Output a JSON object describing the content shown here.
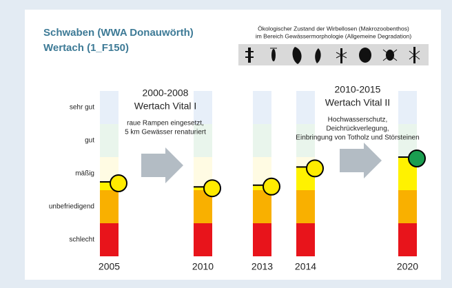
{
  "chart_data": {
    "type": "status-columns",
    "title_lines": [
      "Schwaben (WWA Donauwörth)",
      "Wertach (1_F150)"
    ],
    "subtitle_lines": [
      "Ökologischer Zustand der Wirbellosen (Makrozoobenthos)",
      "im Bereich Gewässermorphologie (Allgemeine Degradation)"
    ],
    "categories": [
      "2005",
      "2010",
      "2013",
      "2014",
      "2020"
    ],
    "values": [
      2.25,
      2.1,
      2.15,
      2.7,
      3.0
    ],
    "point_colors": [
      "#ffeb00",
      "#ffeb00",
      "#ffeb00",
      "#ffeb00",
      "#1a9e50"
    ],
    "ylim": [
      0,
      5
    ],
    "yticks": [
      {
        "value": 0.5,
        "label": "schlecht"
      },
      {
        "value": 1.5,
        "label": "unbefriedigend"
      },
      {
        "value": 2.5,
        "label": "mäßig"
      },
      {
        "value": 3.5,
        "label": "gut"
      },
      {
        "value": 4.5,
        "label": "sehr gut"
      }
    ],
    "band_colors": [
      "#e8141b",
      "#f9b000",
      "#fff200",
      "#2ca05a",
      "#5b8ed6"
    ],
    "band_pale_colors": [
      "#fde3e3",
      "#fdf0d6",
      "#fffbe3",
      "#e9f5ec",
      "#e7eff9"
    ],
    "annotations": [
      {
        "heading": [
          "2000-2008",
          "Wertach Vital I"
        ],
        "detail": [
          "raue Rampen eingesetzt,",
          "5 km Gewässer renaturiert"
        ]
      },
      {
        "heading": [
          "2010-2015",
          "Wertach Vital II"
        ],
        "detail": [
          "Hochwasserschutz,",
          "Deichrückverlegung,",
          "Einbringung von Totholz und Störsteinen"
        ]
      }
    ]
  }
}
